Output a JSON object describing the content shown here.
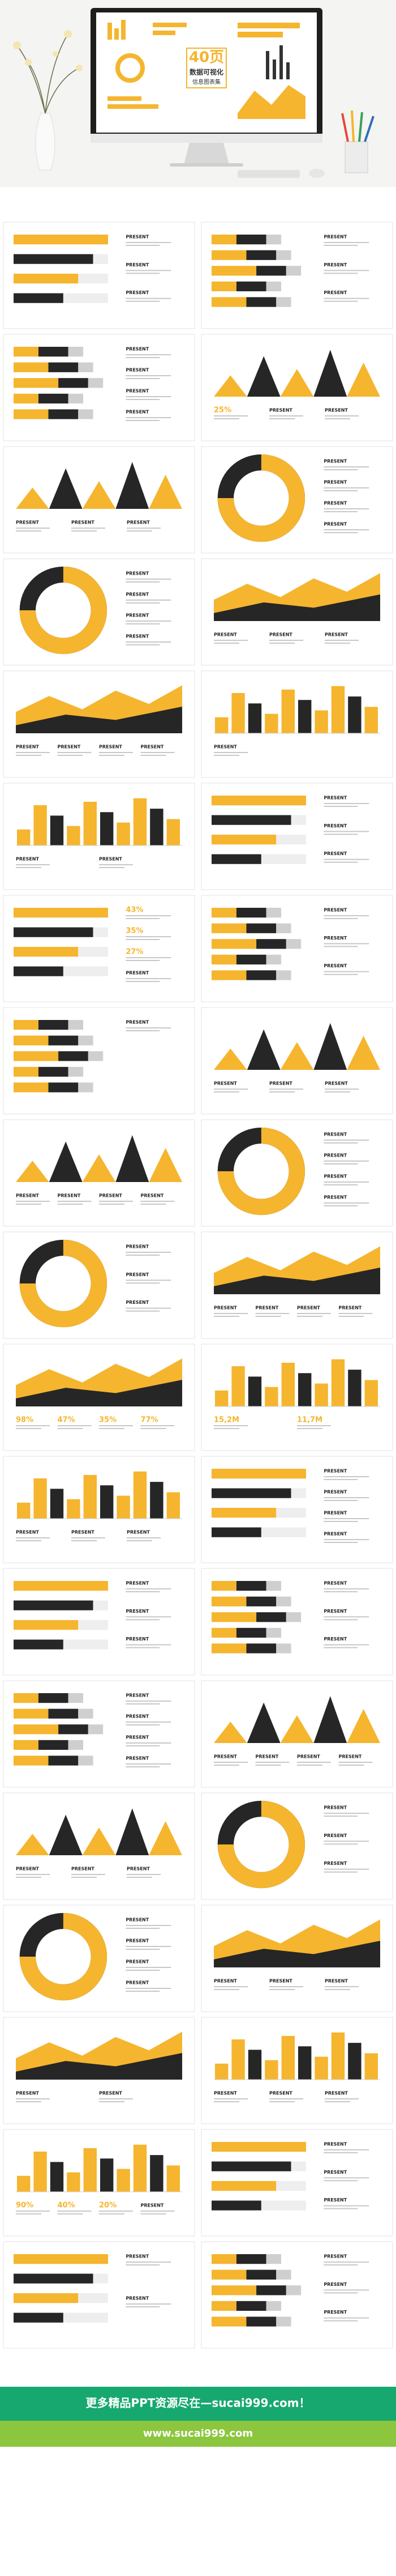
{
  "hero": {
    "number": "40页",
    "title": "数据可视化",
    "subtitle": "信息图表集"
  },
  "slides": [
    [
      "PRESENT",
      "PRESENT",
      "PRESENT"
    ],
    [
      "PRESENT",
      "PRESENT",
      "PRESENT"
    ],
    [
      "PRESENT",
      "PRESENT",
      "PRESENT",
      "PRESENT"
    ],
    [
      "25%",
      "PRESENT",
      "PRESENT"
    ],
    [
      "PRESENT",
      "PRESENT",
      "PRESENT"
    ],
    [
      "PRESENT",
      "PRESENT",
      "PRESENT",
      "PRESENT"
    ],
    [
      "PRESENT",
      "PRESENT",
      "PRESENT",
      "PRESENT"
    ],
    [
      "PRESENT",
      "PRESENT",
      "PRESENT"
    ],
    [
      "PRESENT",
      "PRESENT",
      "PRESENT",
      "PRESENT"
    ],
    [
      "PRESENT"
    ],
    [
      "PRESENT",
      "PRESENT"
    ],
    [
      "PRESENT",
      "PRESENT",
      "PRESENT"
    ],
    [
      "43%",
      "35%",
      "27%",
      "PRESENT"
    ],
    [
      "PRESENT",
      "PRESENT",
      "PRESENT"
    ],
    [
      "PRESENT"
    ],
    [
      "PRESENT",
      "PRESENT",
      "PRESENT"
    ],
    [
      "PRESENT",
      "PRESENT",
      "PRESENT",
      "PRESENT"
    ],
    [
      "PRESENT",
      "PRESENT",
      "PRESENT",
      "PRESENT"
    ],
    [
      "PRESENT",
      "PRESENT",
      "PRESENT"
    ],
    [
      "PRESENT",
      "PRESENT",
      "PRESENT",
      "PRESENT"
    ],
    [
      "98%",
      "47%",
      "35%",
      "77%"
    ],
    [
      "15,2M",
      "11,7M"
    ],
    [
      "PRESENT",
      "PRESENT",
      "PRESENT"
    ],
    [
      "PRESENT",
      "PRESENT",
      "PRESENT",
      "PRESENT"
    ],
    [
      "PRESENT",
      "PRESENT",
      "PRESENT"
    ],
    [
      "PRESENT",
      "PRESENT",
      "PRESENT"
    ],
    [
      "PRESENT",
      "PRESENT",
      "PRESENT",
      "PRESENT"
    ],
    [
      "PRESENT",
      "PRESENT",
      "PRESENT",
      "PRESENT"
    ],
    [
      "PRESENT",
      "PRESENT",
      "PRESENT"
    ],
    [
      "PRESENT",
      "PRESENT",
      "PRESENT"
    ],
    [
      "PRESENT",
      "PRESENT",
      "PRESENT",
      "PRESENT"
    ],
    [
      "PRESENT",
      "PRESENT",
      "PRESENT"
    ],
    [
      "PRESENT",
      "PRESENT"
    ],
    [
      "PRESENT",
      "PRESENT",
      "PRESENT"
    ],
    [
      "90%",
      "40%",
      "20%",
      "PRESENT"
    ],
    [
      "PRESENT",
      "PRESENT",
      "PRESENT"
    ],
    [
      "PRESENT",
      "PRESENT"
    ],
    [
      "PRESENT",
      "PRESENT",
      "PRESENT"
    ]
  ],
  "footer": {
    "banner": "更多精品PPT资源尽在—sucai999.com！",
    "url": "www.sucai999.com"
  }
}
